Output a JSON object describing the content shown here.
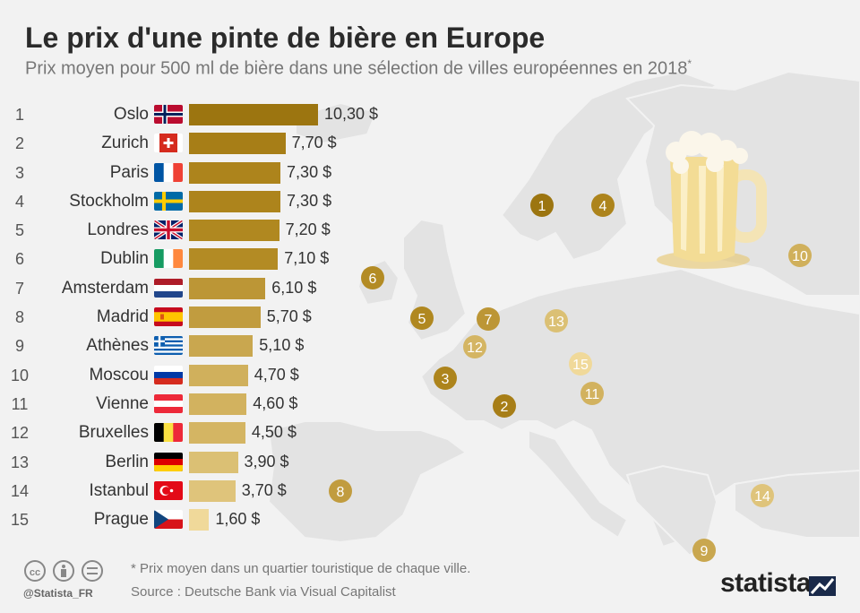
{
  "header": {
    "title": "Le prix d'une pinte de bière en Europe",
    "subtitle": "Prix moyen pour 500 ml de bière dans une sélection de villes européennes en 2018",
    "subtitle_mark": "*"
  },
  "chart_data": {
    "type": "bar",
    "orientation": "horizontal",
    "title": "Le prix d'une pinte de bière en Europe",
    "subtitle": "Prix moyen pour 500 ml de bière dans une sélection de villes européennes en 2018*",
    "ranks": [
      "1",
      "2",
      "3",
      "4",
      "5",
      "6",
      "7",
      "8",
      "9",
      "10",
      "11",
      "12",
      "13",
      "14",
      "15"
    ],
    "categories": [
      "Oslo",
      "Zurich",
      "Paris",
      "Stockholm",
      "Londres",
      "Dublin",
      "Amsterdam",
      "Madrid",
      "Athènes",
      "Moscou",
      "Vienne",
      "Bruxelles",
      "Berlin",
      "Istanbul",
      "Prague"
    ],
    "values": [
      10.3,
      7.7,
      7.3,
      7.3,
      7.2,
      7.1,
      6.1,
      5.7,
      5.1,
      4.7,
      4.6,
      4.5,
      3.9,
      3.7,
      1.6
    ],
    "value_labels": [
      "10,30 $",
      "7,70 $",
      "7,30 $",
      "7,30 $",
      "7,20 $",
      "7,10 $",
      "6,10 $",
      "5,70 $",
      "5,10 $",
      "4,70 $",
      "4,60 $",
      "4,50 $",
      "3,90 $",
      "3,70 $",
      "1,60 $"
    ],
    "flags": [
      "norway-flag-icon",
      "switzerland-flag-icon",
      "france-flag-icon",
      "sweden-flag-icon",
      "uk-flag-icon",
      "ireland-flag-icon",
      "netherlands-flag-icon",
      "spain-flag-icon",
      "greece-flag-icon",
      "russia-flag-icon",
      "austria-flag-icon",
      "belgium-flag-icon",
      "germany-flag-icon",
      "turkey-flag-icon",
      "czech-flag-icon"
    ],
    "bar_colors": [
      "#9c7510",
      "#a77e17",
      "#ad841c",
      "#ad841c",
      "#b08820",
      "#b38b24",
      "#bc9636",
      "#c19c3f",
      "#c9a74f",
      "#d0b05c",
      "#d2b25f",
      "#d4b563",
      "#dbc074",
      "#dfc47b",
      "#f0d99a"
    ],
    "value_unit": "$",
    "map_markers": [
      "1",
      "2",
      "3",
      "4",
      "5",
      "6",
      "7",
      "8",
      "9",
      "10",
      "11",
      "12",
      "13",
      "14",
      "15"
    ],
    "grid": false,
    "legend": "none"
  },
  "footer": {
    "note": "* Prix moyen dans un quartier touristique de chaque ville.",
    "source": "Source : Deutsche Bank via Visual Capitalist",
    "handle": "@Statista_FR",
    "brand": "statista"
  },
  "icons": [
    "creative-commons-icon",
    "attribution-icon",
    "no-derivatives-icon",
    "beer-mug-icon",
    "europe-map"
  ]
}
